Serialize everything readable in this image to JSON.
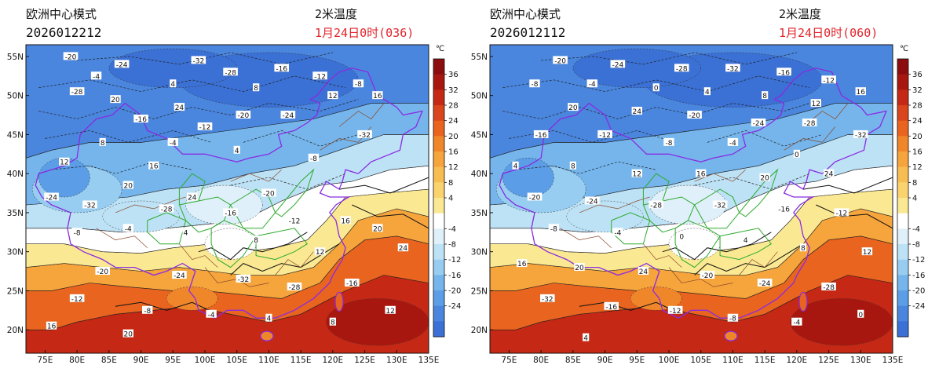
{
  "panels": [
    {
      "model": "欧洲中心模式",
      "init_time": "2026012212",
      "variable": "2米温度",
      "valid_time": "1月24日0时(036)"
    },
    {
      "model": "欧洲中心模式",
      "init_time": "2026012112",
      "variable": "2米温度",
      "valid_time": "1月24日0时(060)"
    }
  ],
  "map": {
    "lat_labels": [
      "55N",
      "50N",
      "45N",
      "40N",
      "35N",
      "30N",
      "25N",
      "20N"
    ],
    "lon_labels": [
      "75E",
      "80E",
      "85E",
      "90E",
      "95E",
      "100E",
      "105E",
      "110E",
      "115E",
      "120E",
      "125E",
      "130E",
      "135E"
    ]
  },
  "colorbar": {
    "unit": "℃",
    "labels": [
      "36",
      "32",
      "28",
      "24",
      "20",
      "16",
      "12",
      "8",
      "4",
      "-4",
      "-8",
      "-12",
      "-16",
      "-20",
      "-24"
    ],
    "colors": [
      "#8c0d0d",
      "#a8170f",
      "#c52814",
      "#d9451c",
      "#e8641f",
      "#f0862a",
      "#f6a43c",
      "#f8bd52",
      "#fad36f",
      "#fbe892",
      "#ffffff",
      "#dff0fa",
      "#bde2f6",
      "#97cdf1",
      "#75b5ec",
      "#5b9de6",
      "#4a86de",
      "#3b70d4"
    ]
  },
  "contour_labels_a": [
    "-20",
    "-24",
    "-32",
    "-28",
    "-16",
    "-12",
    "-8",
    "-4",
    "4",
    "8",
    "12",
    "16",
    "20",
    "24"
  ],
  "contour_labels_b": [
    "-20",
    "-24",
    "-28",
    "-32",
    "-16",
    "-12",
    "-8",
    "-4",
    "0",
    "4",
    "8",
    "12",
    "16",
    "20",
    "24"
  ],
  "colors": {
    "accent_red": "#e0242c",
    "coastline": "#8a2be2",
    "province": "#2eaa2e",
    "county": "#8b4a2b"
  }
}
